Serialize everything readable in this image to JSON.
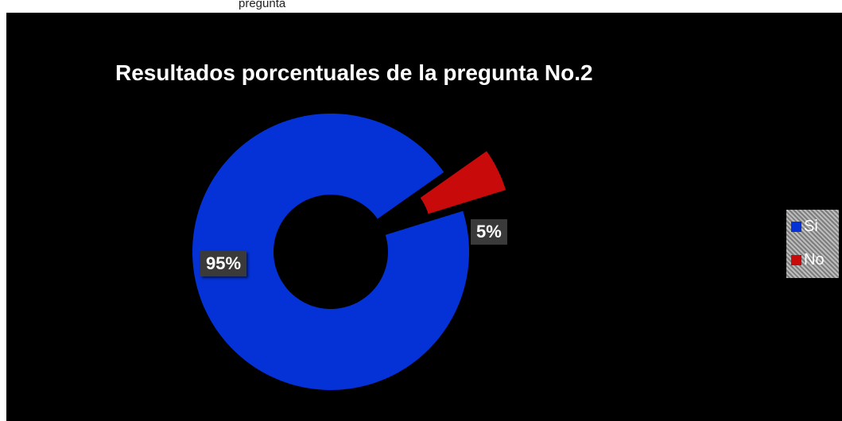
{
  "page": {
    "top_text": "pregunta"
  },
  "chart_data": {
    "type": "pie",
    "subtype": "donut-exploded",
    "title": "Resultados porcentuales de la pregunta No.2",
    "categories": [
      "Si",
      "No"
    ],
    "values": [
      95,
      5
    ],
    "labels": [
      "95%",
      "5%"
    ],
    "colors": [
      "#0432d6",
      "#c80a0a"
    ],
    "legend": {
      "position": "right",
      "entries": [
        "Si",
        "No"
      ]
    },
    "background": "#000000"
  }
}
